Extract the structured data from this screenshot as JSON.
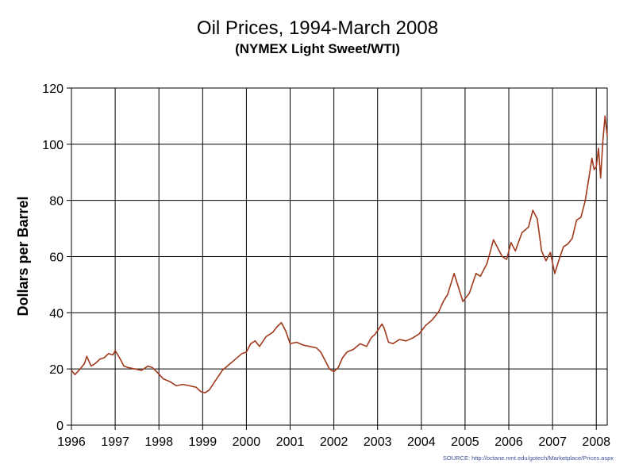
{
  "chart_data": {
    "type": "line",
    "title": "Oil Prices, 1994-March 2008",
    "subtitle": "(NYMEX Light Sweet/WTI)",
    "ylabel": "Dollars per Barrel",
    "xlabel": "",
    "source": "SOURCE: http://octane.nmt.edu/gotech/Marketplace/Prices.aspx",
    "xlim": [
      1996,
      2008.25
    ],
    "ylim": [
      0,
      120
    ],
    "yticks": [
      0,
      20,
      40,
      60,
      80,
      100,
      120
    ],
    "xticks": [
      1996,
      1997,
      1998,
      1999,
      2000,
      2001,
      2002,
      2003,
      2004,
      2005,
      2006,
      2007,
      2008
    ],
    "xtick_labels": [
      "1996",
      "1997",
      "1998",
      "1999",
      "2000",
      "2001",
      "2002",
      "2003",
      "2004",
      "2005",
      "2006",
      "2007",
      "2008"
    ],
    "ytick_labels": [
      "0",
      "20",
      "40",
      "60",
      "80",
      "100",
      "120"
    ],
    "grid": true,
    "line_color": "#a0381a",
    "series": [
      {
        "x": [
          1996.0,
          1996.08,
          1996.2,
          1996.3,
          1996.35,
          1996.45,
          1996.55,
          1996.65,
          1996.75,
          1996.85,
          1996.95,
          1997.0,
          1997.1,
          1997.2,
          1997.3,
          1997.45,
          1997.6,
          1997.75,
          1997.85,
          1997.95,
          1998.1,
          1998.25,
          1998.4,
          1998.55,
          1998.7,
          1998.85,
          1998.95,
          1999.05,
          1999.15,
          1999.3,
          1999.45,
          1999.6,
          1999.75,
          1999.9,
          2000.0,
          2000.1,
          2000.2,
          2000.3,
          2000.45,
          2000.6,
          2000.7,
          2000.8,
          2000.9,
          2001.0,
          2001.15,
          2001.3,
          2001.45,
          2001.6,
          2001.7,
          2001.8,
          2001.9,
          2002.0,
          2002.1,
          2002.2,
          2002.3,
          2002.45,
          2002.6,
          2002.75,
          2002.85,
          2002.95,
          2003.1,
          2003.15,
          2003.25,
          2003.35,
          2003.5,
          2003.65,
          2003.8,
          2003.95,
          2004.1,
          2004.25,
          2004.4,
          2004.5,
          2004.6,
          2004.75,
          2004.85,
          2004.95,
          2005.1,
          2005.25,
          2005.35,
          2005.5,
          2005.65,
          2005.75,
          2005.85,
          2005.95,
          2006.05,
          2006.15,
          2006.3,
          2006.45,
          2006.55,
          2006.65,
          2006.75,
          2006.85,
          2006.95,
          2007.05,
          2007.15,
          2007.25,
          2007.35,
          2007.45,
          2007.55,
          2007.65,
          2007.75,
          2007.85,
          2007.9,
          2007.95,
          2008.0,
          2008.05,
          2008.1,
          2008.15,
          2008.2,
          2008.25
        ],
        "values": [
          19.5,
          18.0,
          20.0,
          22.0,
          24.5,
          21.0,
          22.0,
          23.5,
          24.0,
          25.5,
          25.0,
          26.5,
          24.0,
          21.0,
          20.5,
          20.0,
          19.5,
          21.0,
          20.5,
          19.0,
          16.5,
          15.5,
          14.0,
          14.5,
          14.0,
          13.5,
          12.0,
          11.5,
          12.5,
          16.0,
          19.5,
          21.5,
          23.5,
          25.5,
          26.0,
          29.0,
          30.0,
          28.0,
          31.5,
          33.0,
          35.0,
          36.5,
          33.5,
          29.0,
          29.5,
          28.5,
          28.0,
          27.5,
          26.0,
          23.0,
          20.0,
          19.0,
          20.5,
          24.0,
          26.0,
          27.0,
          29.0,
          28.0,
          31.0,
          32.5,
          36.0,
          34.5,
          29.5,
          29.0,
          30.5,
          30.0,
          31.0,
          32.5,
          35.5,
          37.5,
          40.5,
          44.0,
          46.5,
          54.0,
          49.0,
          44.0,
          47.0,
          54.0,
          53.0,
          57.5,
          66.0,
          63.0,
          60.0,
          59.0,
          65.0,
          62.0,
          68.5,
          70.5,
          76.5,
          73.5,
          62.0,
          58.5,
          61.5,
          54.0,
          59.0,
          63.5,
          64.5,
          66.5,
          73.0,
          74.0,
          80.0,
          90.0,
          95.0,
          91.0,
          92.0,
          98.5,
          88.0,
          101.0,
          110.0,
          103.0
        ]
      }
    ]
  }
}
